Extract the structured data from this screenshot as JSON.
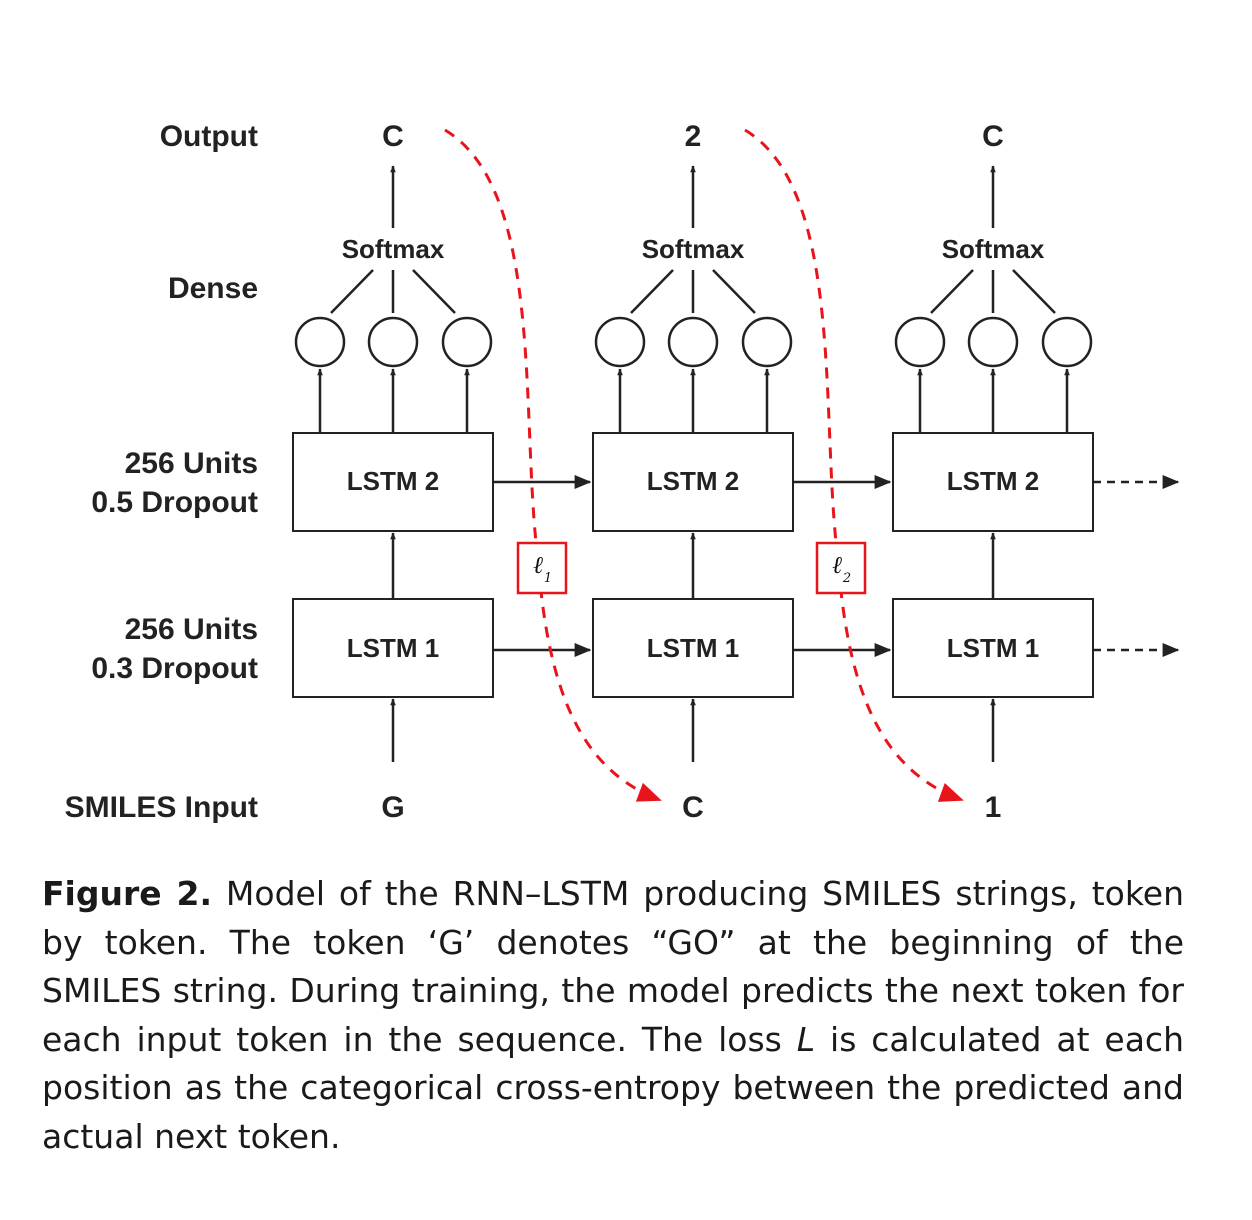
{
  "diagram": {
    "row_labels": {
      "output": "Output",
      "dense": "Dense",
      "lstm2_units": "256 Units",
      "lstm2_dropout": "0.5 Dropout",
      "lstm1_units": "256 Units",
      "lstm1_dropout": "0.3 Dropout",
      "input": "SMILES Input"
    },
    "softmax_label": "Softmax",
    "lstm2_label": "LSTM 2",
    "lstm1_label": "LSTM 1",
    "inputs": [
      "G",
      "C",
      "1"
    ],
    "outputs": [
      "C",
      "2",
      "C"
    ],
    "loss_labels": [
      {
        "symbol": "ℓ",
        "sub": "1"
      },
      {
        "symbol": "ℓ",
        "sub": "2"
      }
    ],
    "colors": {
      "line": "#222222",
      "loss": "#e8141b"
    }
  },
  "caption": {
    "label": "Figure 2.",
    "text_1": " Model of the RNN–LSTM producing SMILES strings, token by token. The token ‘G’ denotes “GO” at the beginning of the SMILES string. During training, the model predicts the next token for each input token in the sequence. The loss ",
    "loss_symbol": "L",
    "text_2": " is calculated at each position as the categorical cross-entropy between the predicted and actual next token."
  }
}
